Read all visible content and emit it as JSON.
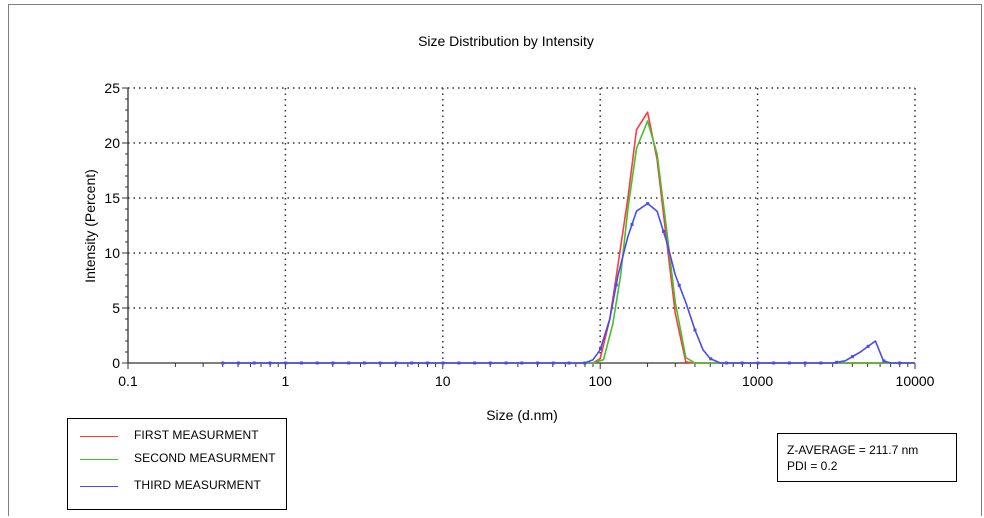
{
  "chart_data": {
    "type": "line",
    "title": "Size Distribution by Intensity",
    "xlabel": "Size (d.nm)",
    "ylabel": "Intensity (Percent)",
    "x_scale": "log",
    "xlim": [
      0.1,
      10000
    ],
    "ylim": [
      0,
      25
    ],
    "x_ticks": [
      "0.1",
      "1",
      "10",
      "100",
      "1000",
      "10000"
    ],
    "y_ticks": [
      "0",
      "5",
      "10",
      "15",
      "20",
      "25"
    ],
    "grid": true,
    "series": [
      {
        "name": "FIRST MEASURMENT",
        "color": "#ff3b3b",
        "x": [
          0.4,
          1,
          10,
          50,
          90,
          100,
          115,
          130,
          150,
          170,
          200,
          230,
          265,
          300,
          350,
          400,
          1000,
          10000
        ],
        "y": [
          0,
          0,
          0,
          0,
          0,
          0.4,
          4,
          9,
          15,
          21.2,
          22.8,
          18.5,
          11,
          4.5,
          0.1,
          0,
          0,
          0
        ]
      },
      {
        "name": "SECOND MEASURMENT",
        "color": "#44c02f",
        "x": [
          0.4,
          1,
          10,
          50,
          90,
          105,
          120,
          135,
          150,
          170,
          200,
          230,
          265,
          300,
          350,
          400,
          1000,
          10000
        ],
        "y": [
          0,
          0,
          0,
          0,
          0,
          0.3,
          3.5,
          8,
          14,
          19.5,
          22,
          19,
          12,
          5.5,
          0.5,
          0,
          0,
          0
        ]
      },
      {
        "name": "THIRD MEASURMENT",
        "color": "#4a4af0",
        "x": [
          0.4,
          1,
          10,
          50,
          80,
          90,
          100,
          115,
          130,
          150,
          170,
          200,
          230,
          265,
          300,
          350,
          400,
          450,
          500,
          580,
          1000,
          3000,
          3600,
          4500,
          5600,
          6300,
          7000,
          10000
        ],
        "y": [
          0,
          0,
          0,
          0,
          0,
          0.3,
          1.2,
          4,
          8,
          11.5,
          13.8,
          14.5,
          13.8,
          11,
          8,
          5.5,
          3,
          1.2,
          0.4,
          0,
          0,
          0,
          0.2,
          1,
          2,
          0.2,
          0,
          0
        ]
      }
    ]
  },
  "legend": {
    "items": [
      {
        "label": "FIRST MEASURMENT",
        "color": "#ff3b3b"
      },
      {
        "label": "SECOND MEASURMENT",
        "color": "#44c02f"
      },
      {
        "label": "THIRD MEASURMENT",
        "color": "#4a4af0"
      }
    ]
  },
  "stats": {
    "z_average": "Z-AVERAGE = 211.7 nm",
    "pdi": "PDI = 0.2"
  }
}
